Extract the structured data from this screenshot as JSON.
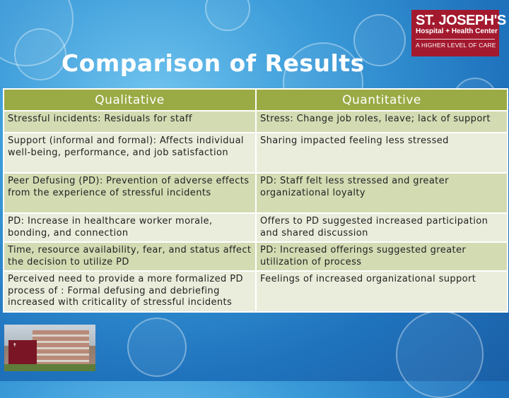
{
  "title": "Comparison of Results",
  "logo": {
    "line1": "ST. JOSEPH'S",
    "line2": "Hospital + Health Center",
    "line3": "A HIGHER LEVEL OF CARE",
    "color": "#a3192e"
  },
  "table": {
    "headers": [
      "Qualitative",
      "Quantitative"
    ],
    "rows": [
      [
        "Stressful incidents: Residuals for staff",
        "Stress: Change job roles, leave; lack of support"
      ],
      [
        "Support (informal and formal): Affects individual well-being, performance, and job satisfaction",
        "Sharing impacted feeling less stressed"
      ],
      [
        "Peer Defusing (PD): Prevention of adverse effects from the experience of stressful incidents",
        "PD: Staff felt less stressed and greater organizational loyalty"
      ],
      [
        "PD: Increase in healthcare worker morale, bonding, and connection",
        "Offers to PD suggested increased participation and shared discussion"
      ],
      [
        "Time, resource availability, fear, and status affect the decision to utilize PD",
        "PD: Increased offerings suggested greater utilization of process"
      ],
      [
        "Perceived need to provide a more formalized PD process of : Formal defusing and debriefing increased with criticality of stressful incidents",
        "Feelings of increased organizational support"
      ]
    ],
    "header_color": "#9aaa44",
    "row_dark": "#d3dbb3",
    "row_light": "#eaeddb"
  },
  "photo": {
    "icon": "hospital-building-photo"
  }
}
